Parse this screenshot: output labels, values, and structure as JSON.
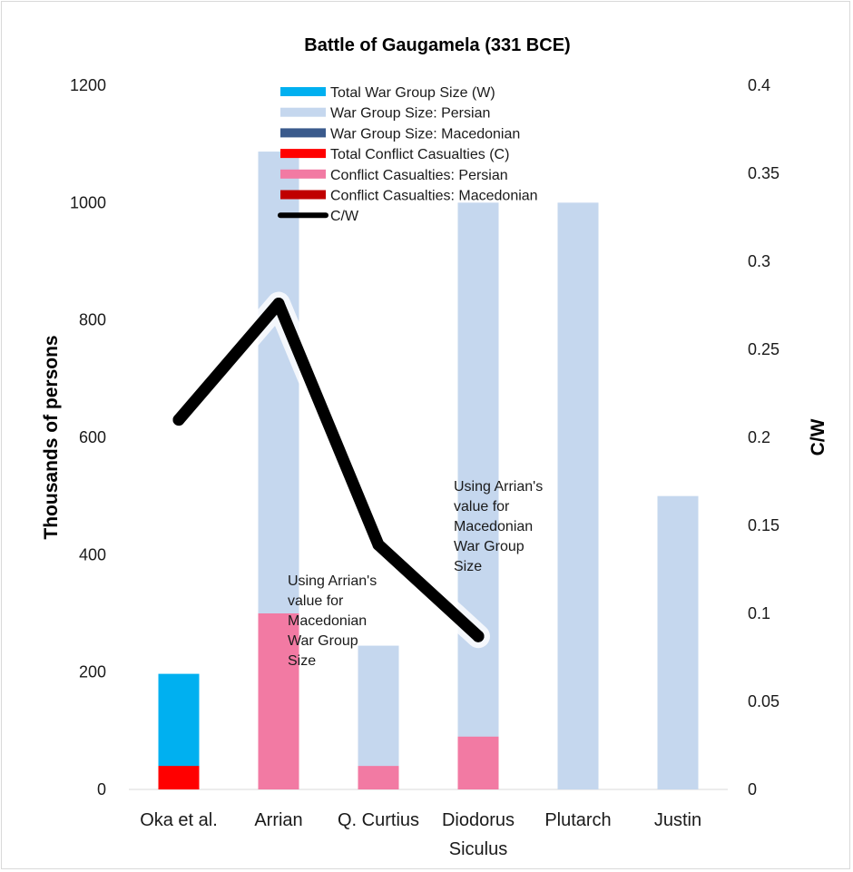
{
  "chart_data": {
    "type": "bar",
    "title": "Battle of Gaugamela (331 BCE)",
    "ylabel": "Thousands of persons",
    "y2label": "C/W",
    "ylim": [
      0,
      1200
    ],
    "y2lim": [
      0,
      0.4
    ],
    "yticks": [
      "0",
      "200",
      "400",
      "600",
      "800",
      "1000",
      "1200"
    ],
    "y2ticks": [
      "0",
      "0.05",
      "0.1",
      "0.15",
      "0.2",
      "0.25",
      "0.3",
      "0.35",
      "0.4"
    ],
    "categories": [
      {
        "line1": "Oka et al.",
        "line2": ""
      },
      {
        "line1": "Arrian",
        "line2": ""
      },
      {
        "line1": "Q. Curtius",
        "line2": ""
      },
      {
        "line1": "Diodorus",
        "line2": "Siculus"
      },
      {
        "line1": "Plutarch",
        "line2": ""
      },
      {
        "line1": "Justin",
        "line2": ""
      }
    ],
    "legend_position": "top-center",
    "series": [
      {
        "name": "Total War Group Size (W)",
        "kind": "bar",
        "color": "#00b0f0",
        "values": [
          197,
          null,
          null,
          null,
          null,
          null
        ]
      },
      {
        "name": "War Group Size: Persian",
        "kind": "bar",
        "color": "#c5d7ee",
        "values": [
          null,
          1087,
          245,
          1000,
          1000,
          500
        ]
      },
      {
        "name": "War Group Size: Macedonian",
        "kind": "bar",
        "color": "#3a5a8c",
        "values": [
          null,
          47,
          null,
          null,
          null,
          null
        ]
      },
      {
        "name": "Total Conflict Casualties (C)",
        "kind": "bar",
        "color": "#ff0000",
        "values": [
          40,
          null,
          null,
          null,
          null,
          null
        ]
      },
      {
        "name": "Conflict Casualties: Persian",
        "kind": "bar",
        "color": "#f27aa3",
        "values": [
          null,
          300,
          40,
          90,
          null,
          null
        ]
      },
      {
        "name": "Conflict Casualties: Macedonian",
        "kind": "bar",
        "color": "#c00000",
        "values": [
          null,
          null,
          null,
          null,
          null,
          null
        ]
      },
      {
        "name": "C/W",
        "kind": "line",
        "axis": "right",
        "color": "#000000",
        "values": [
          0.21,
          0.276,
          0.139,
          0.087,
          null,
          null
        ]
      }
    ],
    "annotations": [
      {
        "category": 1,
        "lines": [
          "Using Arrian's",
          "value for",
          "Macedonian",
          "War Group",
          "Size"
        ]
      },
      {
        "category": 3,
        "lines": [
          "Using Arrian's",
          "value for",
          "Macedonian",
          "War Group",
          "Size"
        ]
      }
    ]
  }
}
